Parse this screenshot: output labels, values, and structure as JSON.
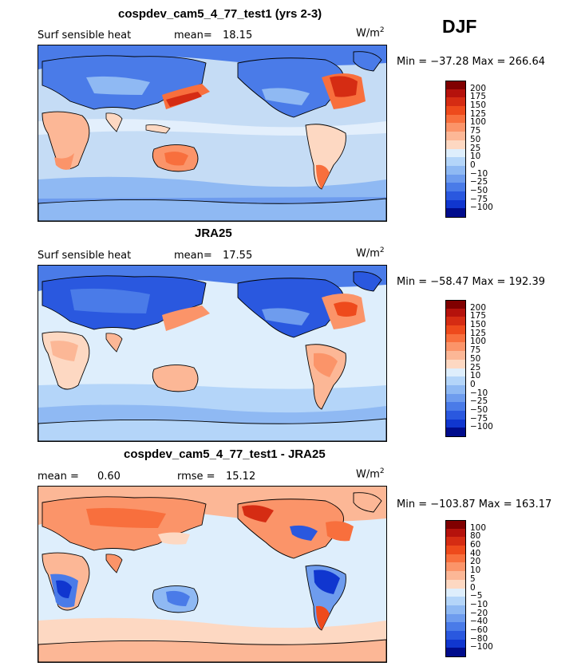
{
  "season": "DJF",
  "units_base": "W/m",
  "units_exp": "2",
  "panels": [
    {
      "title": "cospdev_cam5_4_77_test1 (yrs 2-3)",
      "left_label": "Surf sensible heat",
      "stat1_label": "mean=",
      "stat1_value": "18.15",
      "stat2_label": "",
      "stat2_value": "",
      "minmax": "Min = −37.28 Max = 266.64",
      "colorbar": {
        "labels": [
          "200",
          "175",
          "150",
          "125",
          "100",
          "75",
          "50",
          "25",
          "10",
          "0",
          "−10",
          "−25",
          "−50",
          "−75",
          "−100"
        ],
        "colors": [
          "#800000",
          "#b5120c",
          "#d52c13",
          "#ee4a1c",
          "#f86f3d",
          "#fb9469",
          "#fcb796",
          "#fdd8c2",
          "#deeefc",
          "#b4d5f9",
          "#8fb9f3",
          "#6e9cee",
          "#4a7be8",
          "#2a58df",
          "#1036cf",
          "#000c8c"
        ]
      }
    },
    {
      "title": "JRA25",
      "left_label": "Surf sensible heat",
      "stat1_label": "mean=",
      "stat1_value": "17.55",
      "stat2_label": "",
      "stat2_value": "",
      "minmax": "Min = −58.47 Max = 192.39",
      "colorbar": {
        "labels": [
          "200",
          "175",
          "150",
          "125",
          "100",
          "75",
          "50",
          "25",
          "10",
          "0",
          "−10",
          "−25",
          "−50",
          "−75",
          "−100"
        ],
        "colors": [
          "#800000",
          "#b5120c",
          "#d52c13",
          "#ee4a1c",
          "#f86f3d",
          "#fb9469",
          "#fcb796",
          "#fdd8c2",
          "#deeefc",
          "#b4d5f9",
          "#8fb9f3",
          "#6e9cee",
          "#4a7be8",
          "#2a58df",
          "#1036cf",
          "#000c8c"
        ]
      }
    },
    {
      "title": "cospdev_cam5_4_77_test1 - JRA25",
      "left_label": "",
      "stat1_label": "mean =",
      "stat1_value": "0.60",
      "stat2_label": "rmse =",
      "stat2_value": "15.12",
      "minmax": "Min = −103.87 Max = 163.17",
      "colorbar": {
        "labels": [
          "100",
          "80",
          "60",
          "40",
          "20",
          "10",
          "5",
          "0",
          "−5",
          "−10",
          "−20",
          "−40",
          "−60",
          "−80",
          "−100"
        ],
        "colors": [
          "#800000",
          "#b5120c",
          "#d52c13",
          "#ee4a1c",
          "#f86f3d",
          "#fb9469",
          "#fcb796",
          "#fdd8c2",
          "#deeefc",
          "#b4d5f9",
          "#8fb9f3",
          "#6e9cee",
          "#4a7be8",
          "#2a58df",
          "#1036cf",
          "#000c8c"
        ]
      }
    }
  ]
}
